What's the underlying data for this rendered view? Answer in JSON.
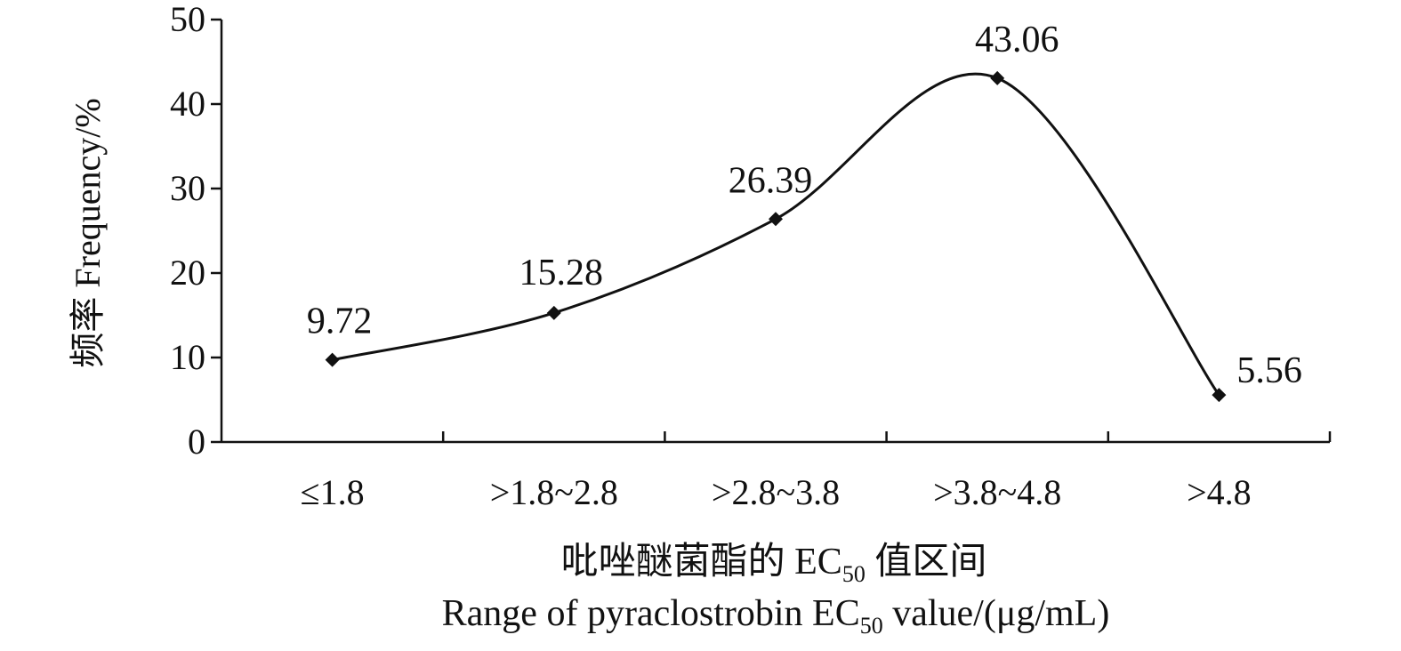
{
  "chart_data": {
    "type": "line",
    "smooth": true,
    "marker": "diamond",
    "categories": [
      "≤1.8",
      ">1.8~2.8",
      ">2.8~3.8",
      ">3.8~4.8",
      ">4.8"
    ],
    "values": [
      9.72,
      15.28,
      26.39,
      43.06,
      5.56
    ],
    "data_labels": [
      "9.72",
      "15.28",
      "26.39",
      "43.06",
      "5.56"
    ],
    "ylim": [
      0,
      50
    ],
    "yticks": [
      "0",
      "10",
      "20",
      "30",
      "40",
      "50"
    ],
    "ylabel": "频率 Frequency/%",
    "xlabel_cn": {
      "pre": "吡唑醚菌酯的 EC",
      "sub": "50",
      "post": " 值区间"
    },
    "xlabel_en": {
      "pre": "Range of pyraclostrobin EC",
      "sub": "50",
      "post": " value/(μg/mL)"
    },
    "grid": false,
    "line_color": "#111111"
  }
}
